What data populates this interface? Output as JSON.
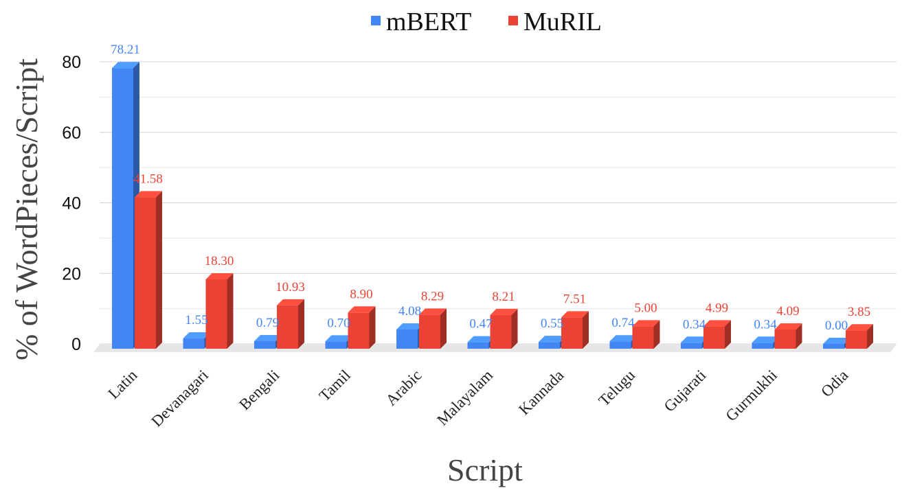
{
  "chart_data": {
    "type": "bar",
    "title": "",
    "xlabel": "Script",
    "ylabel": "% of WordPieces/Script",
    "ylim": [
      0,
      80
    ],
    "yticks": [
      0,
      20,
      40,
      60,
      80
    ],
    "grid": true,
    "legend_position": "top-center",
    "categories": [
      "Latin",
      "Devanagari",
      "Bengali",
      "Tamil",
      "Arabic",
      "Malayalam",
      "Kannada",
      "Telugu",
      "Gujarati",
      "Gurmukhi",
      "Odia"
    ],
    "series": [
      {
        "name": "mBERT",
        "color": "#4285f4",
        "values": [
          78.21,
          1.55,
          0.79,
          0.7,
          4.08,
          0.47,
          0.55,
          0.74,
          0.34,
          0.34,
          0.0
        ],
        "labels": [
          "78.21",
          "1.55",
          "0.79",
          "0.70",
          "4.08",
          "0.47",
          "0.55",
          "0.74",
          "0.34",
          "0.34",
          "0.00"
        ]
      },
      {
        "name": "MuRIL",
        "color": "#ea4335",
        "values": [
          41.58,
          18.3,
          10.93,
          8.9,
          8.29,
          8.21,
          7.51,
          5.0,
          4.99,
          4.09,
          3.85
        ],
        "labels": [
          "41.58",
          "18.30",
          "10.93",
          "8.90",
          "8.29",
          "8.21",
          "7.51",
          "5.00",
          "4.99",
          "4.09",
          "3.85"
        ]
      }
    ]
  }
}
